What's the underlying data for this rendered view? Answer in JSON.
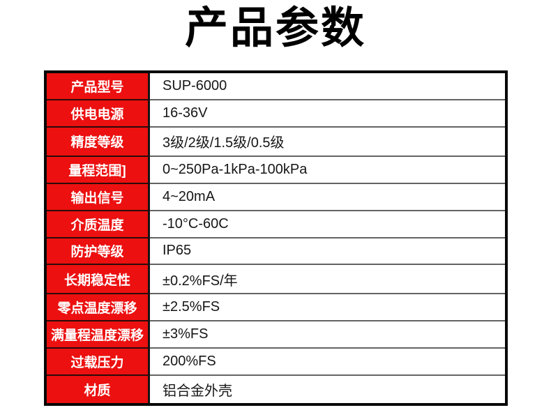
{
  "title": "产品参数",
  "table": {
    "rows": [
      {
        "label": "产品型号",
        "value": "SUP-6000"
      },
      {
        "label": "供电电源",
        "value": "16-36V"
      },
      {
        "label": "精度等级",
        "value": "3级/2级/1.5级/0.5级"
      },
      {
        "label": "量程范围]",
        "value": "0~250Pa-1kPa-100kPa"
      },
      {
        "label": "输出信号",
        "value": "4~20mA"
      },
      {
        "label": "介质温度",
        "value": "-10°C-60C"
      },
      {
        "label": "防护等级",
        "value": "IP65"
      },
      {
        "label": "长期稳定性",
        "value": "±0.2%FS/年"
      },
      {
        "label": "零点温度漂移",
        "value": "±2.5%FS"
      },
      {
        "label": "满量程温度漂移",
        "value": "±3%FS"
      },
      {
        "label": "过载压力",
        "value": "200%FS"
      },
      {
        "label": "材质",
        "value": "铝合金外壳"
      }
    ]
  },
  "colors": {
    "label_column_red": "#ec1010",
    "outer_border_black": "#070707",
    "label_text_white": "#ffffff",
    "value_text_black": "#161616",
    "row_divider_gray": "#636363",
    "page_background": "#ffffff"
  }
}
